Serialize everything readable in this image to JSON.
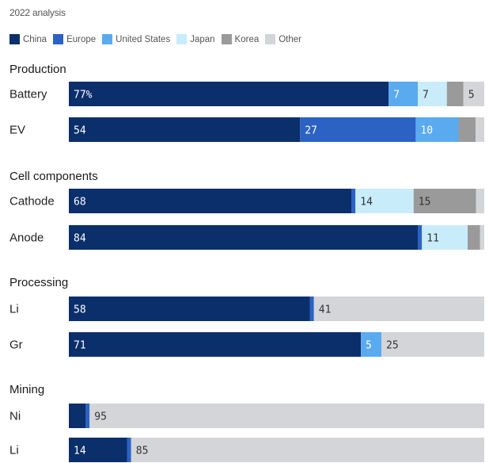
{
  "chart_data": {
    "type": "bar",
    "stacked": true,
    "orientation": "horizontal",
    "subtitle": "2022 analysis",
    "legend_position": "top-left",
    "xlim": [
      0,
      100
    ],
    "series": [
      {
        "name": "China",
        "color": "#0b2f6b"
      },
      {
        "name": "Europe",
        "color": "#2b62c4"
      },
      {
        "name": "United States",
        "color": "#5aaaf0"
      },
      {
        "name": "Japan",
        "color": "#c9ecfb"
      },
      {
        "name": "Korea",
        "color": "#9a9a9a"
      },
      {
        "name": "Other",
        "color": "#d4d5d8"
      }
    ],
    "groups": [
      {
        "title": "Production",
        "rows": [
          {
            "category": "Battery",
            "values": [
              77,
              0,
              7,
              7,
              4,
              5
            ],
            "labels": [
              "77%",
              "",
              "7",
              "7",
              "",
              "5"
            ]
          },
          {
            "category": "EV",
            "values": [
              54,
              27,
              10,
              0,
              4,
              2
            ],
            "labels": [
              "54",
              "27",
              "10",
              "",
              "",
              ""
            ]
          }
        ]
      },
      {
        "title": "Cell components",
        "rows": [
          {
            "category": "Cathode",
            "values": [
              68,
              1,
              0,
              14,
              15,
              2
            ],
            "labels": [
              "68",
              "",
              "",
              "14",
              "15",
              ""
            ]
          },
          {
            "category": "Anode",
            "values": [
              84,
              1,
              0,
              11,
              3,
              1
            ],
            "labels": [
              "84",
              "",
              "",
              "11",
              "",
              ""
            ]
          }
        ]
      },
      {
        "title": "Processing",
        "rows": [
          {
            "category": "Li",
            "values": [
              58,
              1,
              0,
              0,
              0,
              41
            ],
            "labels": [
              "58",
              "",
              "",
              "",
              "",
              "41"
            ]
          },
          {
            "category": "Gr",
            "values": [
              71,
              0,
              5,
              0,
              0,
              25
            ],
            "labels": [
              "71",
              "",
              "5",
              "",
              "",
              "25"
            ]
          }
        ]
      },
      {
        "title": "Mining",
        "rows": [
          {
            "category": "Ni",
            "values": [
              4,
              1,
              0,
              0,
              0,
              95
            ],
            "labels": [
              "",
              "",
              "",
              "",
              "",
              "95"
            ]
          },
          {
            "category": "Li",
            "values": [
              14,
              1,
              0,
              0,
              0,
              85
            ],
            "labels": [
              "14",
              "",
              "",
              "",
              "",
              "85"
            ]
          }
        ]
      }
    ]
  }
}
